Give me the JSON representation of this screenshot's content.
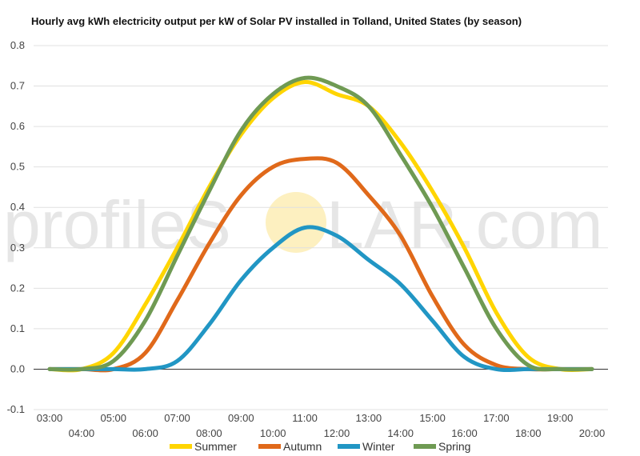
{
  "chart_data": {
    "type": "line",
    "title": "Hourly avg kWh electricity output per kW of Solar PV installed in Tolland, United States (by season)",
    "xlabel": "",
    "ylabel": "",
    "x": [
      "03:00",
      "04:00",
      "05:00",
      "06:00",
      "07:00",
      "08:00",
      "09:00",
      "10:00",
      "11:00",
      "12:00",
      "13:00",
      "14:00",
      "15:00",
      "16:00",
      "17:00",
      "18:00",
      "19:00",
      "20:00"
    ],
    "ylim": [
      -0.1,
      0.8
    ],
    "yticks": [
      "-0.1",
      "0.0",
      "0.1",
      "0.2",
      "0.3",
      "0.4",
      "0.5",
      "0.6",
      "0.7",
      "0.8"
    ],
    "grid": true,
    "legend_position": "bottom",
    "series": [
      {
        "name": "Summer",
        "color": "#ffd500",
        "values": [
          0.0,
          0.0,
          0.04,
          0.16,
          0.3,
          0.45,
          0.58,
          0.67,
          0.71,
          0.68,
          0.65,
          0.56,
          0.44,
          0.3,
          0.14,
          0.03,
          0.0,
          0.0
        ]
      },
      {
        "name": "Autumn",
        "color": "#e0691a",
        "values": [
          0.0,
          0.0,
          0.0,
          0.04,
          0.17,
          0.31,
          0.43,
          0.5,
          0.52,
          0.51,
          0.43,
          0.33,
          0.18,
          0.06,
          0.01,
          0.0,
          0.0,
          0.0
        ]
      },
      {
        "name": "Winter",
        "color": "#2196c4",
        "values": [
          0.0,
          0.0,
          0.0,
          0.0,
          0.02,
          0.11,
          0.22,
          0.3,
          0.35,
          0.33,
          0.27,
          0.21,
          0.12,
          0.03,
          0.0,
          0.0,
          0.0,
          0.0
        ]
      },
      {
        "name": "Spring",
        "color": "#6f9a53",
        "values": [
          0.0,
          0.0,
          0.02,
          0.12,
          0.28,
          0.44,
          0.59,
          0.68,
          0.72,
          0.7,
          0.65,
          0.53,
          0.4,
          0.25,
          0.1,
          0.01,
          0.0,
          0.0
        ]
      }
    ]
  },
  "watermark": {
    "left": "profileS",
    "right": "LAR.com"
  }
}
